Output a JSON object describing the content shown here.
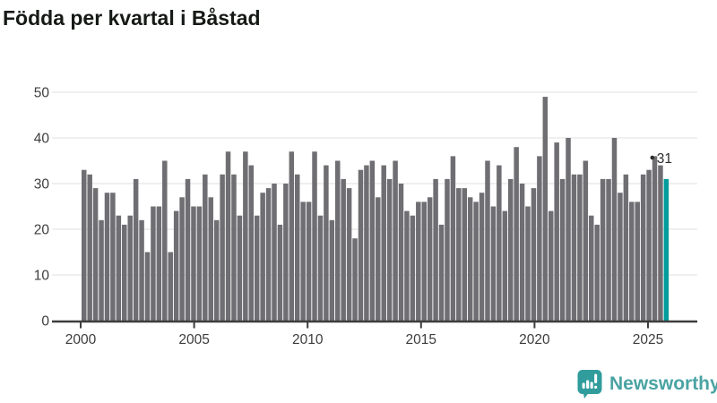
{
  "title": "Födda per kvartal i Båstad",
  "chart_data": {
    "type": "bar",
    "title": "Födda per kvartal i Båstad",
    "x_unit": "quarter",
    "x_start_year": 2000,
    "values": [
      33,
      32,
      29,
      22,
      28,
      28,
      23,
      21,
      23,
      31,
      22,
      15,
      25,
      25,
      35,
      15,
      24,
      27,
      31,
      25,
      25,
      32,
      27,
      22,
      32,
      37,
      32,
      23,
      37,
      34,
      23,
      28,
      29,
      30,
      21,
      30,
      37,
      32,
      26,
      26,
      37,
      23,
      34,
      22,
      35,
      31,
      29,
      18,
      33,
      34,
      35,
      27,
      34,
      31,
      35,
      30,
      24,
      23,
      26,
      26,
      27,
      31,
      21,
      31,
      36,
      29,
      29,
      27,
      26,
      28,
      35,
      25,
      34,
      24,
      31,
      38,
      30,
      25,
      29,
      36,
      49,
      24,
      39,
      31,
      40,
      32,
      32,
      35,
      23,
      21,
      31,
      31,
      40,
      28,
      32,
      26,
      26,
      32,
      33,
      36,
      34,
      31
    ],
    "highlighted_last_value": 31,
    "last_value_label": "31",
    "x_tick_labels": [
      "2000",
      "2005",
      "2010",
      "2015",
      "2020",
      "2025"
    ],
    "y_tick_labels": [
      "0",
      "10",
      "20",
      "30",
      "40",
      "50"
    ],
    "y_ticks": [
      0,
      10,
      20,
      30,
      40,
      50
    ],
    "ylim": [
      0,
      50
    ],
    "grid": "horizontal",
    "legend": "none",
    "bar_color": "#6F6F73",
    "highlight_color": "#009C9C",
    "grid_color": "#E5E5E5",
    "axis_color": "#3D3D3D",
    "tick_label_color": "#3D3D3D",
    "value_label_color": "#2E2E2E"
  },
  "footer": {
    "brand": "Newsworthy",
    "brand_color": "#4AA3A3",
    "icon": "newsworthy-speech-bubble-bar-chart-icon",
    "icon_color": "#319C9C"
  }
}
